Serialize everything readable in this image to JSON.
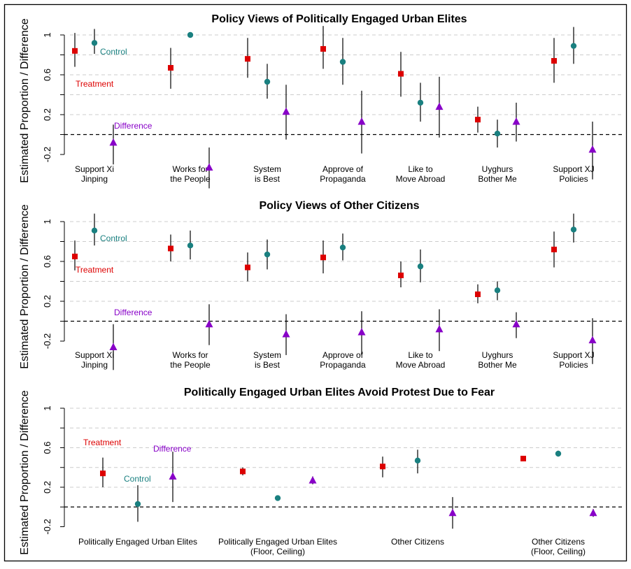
{
  "colors": {
    "treatment": "#dd0000",
    "control": "#1a8080",
    "difference": "#8800c8",
    "grid": "#cccccc",
    "axis": "#000000",
    "frame": "#000000"
  },
  "markers": {
    "treatment": "square",
    "control": "circle",
    "difference": "triangle"
  },
  "chart_data": [
    {
      "type": "scatter",
      "title": "Policy Views of Politically Engaged Urban Elites",
      "ylabel": "Estimated Proportion / Difference",
      "ylim": [
        -0.3,
        1.1
      ],
      "yticks": [
        "1",
        "0.6",
        "0.2",
        "-0.2"
      ],
      "ytick_values": [
        1,
        0.6,
        0.2,
        -0.2
      ],
      "grid": true,
      "reference_line": 0,
      "categories": [
        [
          "Support Xi",
          "Jinping"
        ],
        [
          "Works for",
          "the People"
        ],
        [
          "System",
          "is Best"
        ],
        [
          "Approve of",
          "Propaganda"
        ],
        [
          "Like to",
          "Move Abroad"
        ],
        [
          "Uyghurs",
          "Bother Me"
        ],
        [
          "Support XJ",
          "Policies"
        ]
      ],
      "series": [
        {
          "name": "Treatment",
          "marker": "square",
          "values": [
            0.84,
            0.67,
            0.76,
            0.86,
            0.61,
            0.15,
            0.74
          ],
          "ci": [
            [
              0.68,
              1.02
            ],
            [
              0.46,
              0.87
            ],
            [
              0.57,
              0.97
            ],
            [
              0.66,
              1.09
            ],
            [
              0.38,
              0.83
            ],
            [
              0.02,
              0.28
            ],
            [
              0.52,
              0.97
            ]
          ]
        },
        {
          "name": "Control",
          "marker": "circle",
          "values": [
            0.92,
            1.0,
            0.53,
            0.73,
            0.32,
            0.01,
            0.89
          ],
          "ci": [
            [
              0.81,
              1.06
            ],
            [
              1.0,
              1.0
            ],
            [
              0.36,
              0.71
            ],
            [
              0.5,
              0.97
            ],
            [
              0.13,
              0.52
            ],
            [
              -0.13,
              0.15
            ],
            [
              0.71,
              1.08
            ]
          ]
        },
        {
          "name": "Difference",
          "marker": "triangle",
          "values": [
            -0.08,
            -0.33,
            0.23,
            0.13,
            0.28,
            0.13,
            -0.15
          ],
          "ci": [
            [
              -0.3,
              0.1
            ],
            [
              -0.54,
              -0.13
            ],
            [
              -0.05,
              0.5
            ],
            [
              -0.19,
              0.44
            ],
            [
              -0.03,
              0.58
            ],
            [
              -0.07,
              0.32
            ],
            [
              -0.45,
              0.13
            ]
          ]
        }
      ],
      "annotations": [
        {
          "text": "Control",
          "series": "Control"
        },
        {
          "text": "Treatment",
          "series": "Treatment"
        },
        {
          "text": "Difference",
          "series": "Difference"
        }
      ]
    },
    {
      "type": "scatter",
      "title": "Policy Views of Other Citizens",
      "ylabel": "Estimated Proportion / Difference",
      "ylim": [
        -0.3,
        1.1
      ],
      "yticks": [
        "1",
        "0.6",
        "0.2",
        "-0.2"
      ],
      "ytick_values": [
        1,
        0.6,
        0.2,
        -0.2
      ],
      "grid": true,
      "reference_line": 0,
      "categories": [
        [
          "Support Xi",
          "Jinping"
        ],
        [
          "Works for",
          "the People"
        ],
        [
          "System",
          "is Best"
        ],
        [
          "Approve of",
          "Propaganda"
        ],
        [
          "Like to",
          "Move Abroad"
        ],
        [
          "Uyghurs",
          "Bother Me"
        ],
        [
          "Support XJ",
          "Policies"
        ]
      ],
      "series": [
        {
          "name": "Treatment",
          "marker": "square",
          "values": [
            0.65,
            0.73,
            0.54,
            0.64,
            0.46,
            0.27,
            0.72
          ],
          "ci": [
            [
              0.51,
              0.81
            ],
            [
              0.6,
              0.87
            ],
            [
              0.4,
              0.69
            ],
            [
              0.48,
              0.81
            ],
            [
              0.34,
              0.6
            ],
            [
              0.18,
              0.37
            ],
            [
              0.54,
              0.9
            ]
          ]
        },
        {
          "name": "Control",
          "marker": "circle",
          "values": [
            0.91,
            0.76,
            0.67,
            0.74,
            0.55,
            0.31,
            0.92
          ],
          "ci": [
            [
              0.76,
              1.08
            ],
            [
              0.62,
              0.91
            ],
            [
              0.52,
              0.82
            ],
            [
              0.61,
              0.88
            ],
            [
              0.39,
              0.72
            ],
            [
              0.21,
              0.4
            ],
            [
              0.79,
              1.08
            ]
          ]
        },
        {
          "name": "Difference",
          "marker": "triangle",
          "values": [
            -0.26,
            -0.03,
            -0.13,
            -0.11,
            -0.08,
            -0.03,
            -0.19
          ],
          "ci": [
            [
              -0.49,
              -0.03
            ],
            [
              -0.24,
              0.17
            ],
            [
              -0.34,
              0.07
            ],
            [
              -0.34,
              0.1
            ],
            [
              -0.3,
              0.12
            ],
            [
              -0.17,
              0.09
            ],
            [
              -0.43,
              0.03
            ]
          ]
        }
      ],
      "annotations": [
        {
          "text": "Control",
          "series": "Control"
        },
        {
          "text": "Treatment",
          "series": "Treatment"
        },
        {
          "text": "Difference",
          "series": "Difference"
        }
      ]
    },
    {
      "type": "scatter",
      "title": "Politically Engaged Urban Elites Avoid Protest Due to Fear",
      "ylabel": "Estimated Proportion / Difference",
      "ylim": [
        -0.3,
        1.1
      ],
      "yticks": [
        "1",
        "0.6",
        "0.2",
        "-0.2"
      ],
      "ytick_values": [
        1,
        0.6,
        0.2,
        -0.2
      ],
      "grid": true,
      "reference_line": 0,
      "categories": [
        [
          "Politically Engaged Urban Elites"
        ],
        [
          "Politically Engaged Urban Elites",
          "(Floor, Ceiling)"
        ],
        [
          "Other Citizens"
        ],
        [
          "Other Citizens",
          "(Floor, Ceiling)"
        ]
      ],
      "series": [
        {
          "name": "Treatment",
          "marker": "square",
          "values": [
            0.34,
            0.36,
            0.41,
            0.49
          ],
          "ci": [
            [
              0.2,
              0.5
            ],
            [
              0.32,
              0.4
            ],
            [
              0.3,
              0.51
            ],
            [
              0.49,
              0.49
            ]
          ]
        },
        {
          "name": "Control",
          "marker": "circle",
          "values": [
            0.03,
            0.09,
            0.47,
            0.54
          ],
          "ci": [
            [
              -0.15,
              0.22
            ],
            [
              0.09,
              0.09
            ],
            [
              0.34,
              0.58
            ],
            [
              0.51,
              0.57
            ]
          ]
        },
        {
          "name": "Difference",
          "marker": "triangle",
          "values": [
            0.31,
            0.27,
            -0.06,
            -0.06
          ],
          "ci": [
            [
              0.05,
              0.56
            ],
            [
              0.23,
              0.31
            ],
            [
              -0.22,
              0.1
            ],
            [
              -0.1,
              -0.02
            ]
          ]
        }
      ],
      "annotations": [
        {
          "text": "Treatment",
          "series": "Treatment"
        },
        {
          "text": "Control",
          "series": "Control"
        },
        {
          "text": "Difference",
          "series": "Difference"
        }
      ]
    }
  ]
}
